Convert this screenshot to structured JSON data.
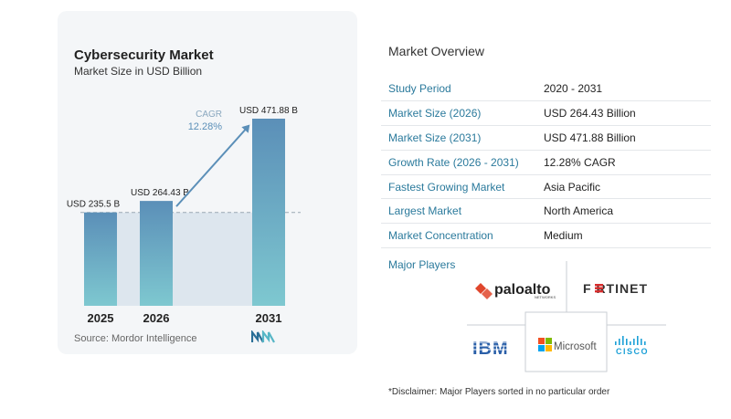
{
  "chart_data": {
    "type": "bar",
    "title": "Cybersecurity Market",
    "subtitle": "Market Size in USD Billion",
    "categories": [
      "2025",
      "2026",
      "2031"
    ],
    "values": [
      235.5,
      264.43,
      471.88
    ],
    "value_labels": [
      "USD 235.5 B",
      "USD 264.43 B",
      "USD 471.88 B"
    ],
    "cagr_label": "CAGR",
    "cagr_value": "12.28%",
    "colors": {
      "bar_top": "#5b8fb8",
      "bar_bottom": "#7ec8d0",
      "arrow": "#5b8fb8",
      "baseline_band": "#dde6ee"
    }
  },
  "source": "Source:  Mordor Intelligence",
  "overview": {
    "title": "Market Overview",
    "rows": [
      {
        "key": "Study Period",
        "value": "2020 - 2031"
      },
      {
        "key": "Market Size (2026)",
        "value": "USD 264.43 Billion"
      },
      {
        "key": "Market Size (2031)",
        "value": "USD 471.88 Billion"
      },
      {
        "key": "Growth Rate (2026 - 2031)",
        "value": "12.28% CAGR"
      },
      {
        "key": "Fastest Growing Market",
        "value": "Asia Pacific"
      },
      {
        "key": "Largest Market",
        "value": "North America"
      },
      {
        "key": "Market Concentration",
        "value": "Medium"
      }
    ]
  },
  "major_players": {
    "title": "Major Players",
    "logos": {
      "paloalto": "paloalto",
      "paloalto_sub": "NETWORKS",
      "fortinet": "F RTINET",
      "ibm": "IBM",
      "microsoft": "Microsoft",
      "cisco": "CISCO"
    }
  },
  "disclaimer": "*Disclaimer: Major Players sorted in no particular order"
}
